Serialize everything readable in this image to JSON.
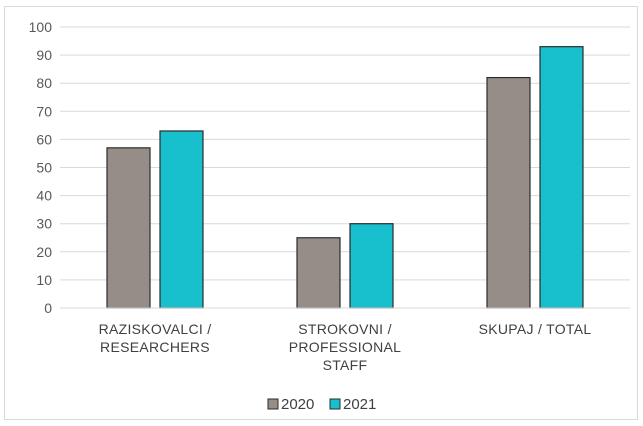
{
  "chart_data": {
    "type": "bar",
    "categories": [
      [
        "RAZISKOVALCI /",
        "RESEARCHERS"
      ],
      [
        "STROKOVNI /",
        "PROFESSIONAL",
        "STAFF"
      ],
      [
        "SKUPAJ / TOTAL"
      ]
    ],
    "series": [
      {
        "name": "2020",
        "values": [
          57,
          25,
          82
        ],
        "color": "#968d89"
      },
      {
        "name": "2021",
        "values": [
          63,
          30,
          93
        ],
        "color": "#17c0cc"
      }
    ],
    "ylim": [
      0,
      100
    ],
    "yticks": [
      0,
      10,
      20,
      30,
      40,
      50,
      60,
      70,
      80,
      90,
      100
    ],
    "grid": true,
    "legend_position": "bottom",
    "title": "",
    "xlabel": "",
    "ylabel": ""
  }
}
